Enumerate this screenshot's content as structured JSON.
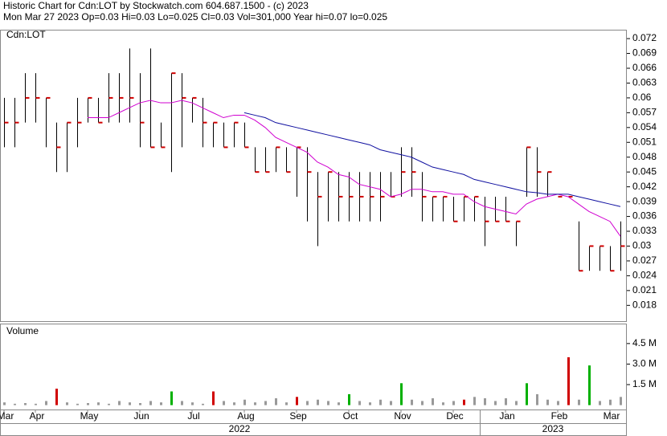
{
  "chart_data": [
    {
      "type": "ohlc",
      "title": "Historic Chart for Cdn:LOT by Stockwatch.com 604.687.1500 - (c) 2023",
      "subtitle": "Mon Mar 27 2023  Op=0.03  Hi=0.03  Lo=0.025  Cl=0.03  Vol=301,000  Year hi=0.07  lo=0.025",
      "label": "Cdn:LOT",
      "bar_color": "#000",
      "close_color": "#d00000",
      "high": [
        0.06,
        0.06,
        0.065,
        0.065,
        0.06,
        0.055,
        0.055,
        0.06,
        0.06,
        0.06,
        0.065,
        0.065,
        0.07,
        0.065,
        0.07,
        0.055,
        0.065,
        0.065,
        0.06,
        0.06,
        0.055,
        0.055,
        0.055,
        0.055,
        0.05,
        0.05,
        0.05,
        0.05,
        0.05,
        0.05,
        0.045,
        0.045,
        0.045,
        0.045,
        0.045,
        0.045,
        0.045,
        0.045,
        0.05,
        0.05,
        0.045,
        0.04,
        0.04,
        0.04,
        0.04,
        0.04,
        0.04,
        0.04,
        0.04,
        0.035,
        0.05,
        0.05,
        0.045,
        0.04,
        0.04,
        0.035,
        0.03,
        0.03,
        0.03,
        0.035
      ],
      "low": [
        0.05,
        0.05,
        0.055,
        0.055,
        0.05,
        0.045,
        0.045,
        0.05,
        0.055,
        0.055,
        0.055,
        0.055,
        0.055,
        0.05,
        0.05,
        0.05,
        0.045,
        0.05,
        0.055,
        0.05,
        0.05,
        0.05,
        0.05,
        0.05,
        0.045,
        0.045,
        0.045,
        0.045,
        0.04,
        0.035,
        0.03,
        0.035,
        0.035,
        0.035,
        0.035,
        0.035,
        0.035,
        0.04,
        0.04,
        0.04,
        0.035,
        0.035,
        0.035,
        0.035,
        0.035,
        0.035,
        0.03,
        0.035,
        0.035,
        0.03,
        0.04,
        0.04,
        0.04,
        0.04,
        0.04,
        0.025,
        0.025,
        0.025,
        0.025,
        0.025
      ],
      "close": [
        0.055,
        0.055,
        0.06,
        0.06,
        0.06,
        0.05,
        0.055,
        0.055,
        0.06,
        0.055,
        0.06,
        0.06,
        0.06,
        0.055,
        0.05,
        0.05,
        0.065,
        0.06,
        0.06,
        0.055,
        0.055,
        0.05,
        0.055,
        0.05,
        0.045,
        0.045,
        0.05,
        0.045,
        0.05,
        0.045,
        0.04,
        0.045,
        0.04,
        0.04,
        0.04,
        0.04,
        0.04,
        0.04,
        0.045,
        0.045,
        0.04,
        0.04,
        0.04,
        0.035,
        0.04,
        0.04,
        0.035,
        0.035,
        0.035,
        0.035,
        0.05,
        0.045,
        0.045,
        0.04,
        0.04,
        0.025,
        0.03,
        0.03,
        0.025,
        0.03
      ],
      "moving_averages": [
        {
          "color": "#d000d0",
          "values": [
            null,
            null,
            null,
            null,
            null,
            null,
            null,
            null,
            0.056,
            0.056,
            0.056,
            0.057,
            0.058,
            0.059,
            0.0595,
            0.059,
            0.059,
            0.0595,
            0.059,
            0.058,
            0.057,
            0.056,
            0.0565,
            0.0565,
            0.0555,
            0.054,
            0.052,
            0.051,
            0.05,
            0.049,
            0.047,
            0.046,
            0.0445,
            0.044,
            0.0425,
            0.042,
            0.0415,
            0.04,
            0.0405,
            0.0415,
            0.0415,
            0.041,
            0.041,
            0.0405,
            0.0405,
            0.039,
            0.038,
            0.0375,
            0.037,
            0.0365,
            0.0385,
            0.0395,
            0.04,
            0.0405,
            0.04,
            0.0385,
            0.037,
            0.036,
            0.035,
            0.032
          ]
        },
        {
          "color": "#1010a0",
          "values": [
            null,
            null,
            null,
            null,
            null,
            null,
            null,
            null,
            null,
            null,
            null,
            null,
            null,
            null,
            null,
            null,
            null,
            null,
            null,
            null,
            null,
            null,
            null,
            0.057,
            0.0565,
            0.056,
            0.055,
            0.0545,
            0.054,
            0.0535,
            0.053,
            0.0525,
            0.052,
            0.0515,
            0.051,
            0.0505,
            0.0495,
            0.049,
            0.0485,
            0.048,
            0.047,
            0.046,
            0.0455,
            0.045,
            0.0445,
            0.0435,
            0.043,
            0.0425,
            0.042,
            0.0415,
            0.041,
            0.0408,
            0.0405,
            0.0405,
            0.0405,
            0.04,
            0.0395,
            0.039,
            0.0385,
            0.038
          ]
        }
      ],
      "ylim": [
        0.0148,
        0.0738
      ],
      "yticks": [
        0.072,
        0.069,
        0.066,
        0.063,
        0.06,
        0.057,
        0.054,
        0.051,
        0.048,
        0.045,
        0.042,
        0.039,
        0.036,
        0.033,
        0.03,
        0.027,
        0.024,
        0.021,
        0.018
      ]
    },
    {
      "type": "bar",
      "title": "Volume",
      "categories": [
        "Mar",
        null,
        null,
        "Apr",
        null,
        null,
        null,
        null,
        "May",
        null,
        null,
        null,
        null,
        "Jun",
        null,
        null,
        null,
        null,
        "Jul",
        null,
        null,
        null,
        null,
        "Aug",
        null,
        null,
        null,
        null,
        "Sep",
        null,
        null,
        null,
        null,
        "Oct",
        null,
        null,
        null,
        null,
        "Nov",
        null,
        null,
        null,
        null,
        "Dec",
        null,
        null,
        null,
        null,
        "Jan",
        null,
        null,
        null,
        null,
        "Feb",
        null,
        null,
        null,
        null,
        "Mar",
        null
      ],
      "values": [
        0.2,
        0.1,
        0.15,
        0.1,
        0.3,
        1.2,
        0.2,
        0.1,
        0.15,
        0.2,
        0.1,
        0.3,
        0.2,
        0.15,
        0.3,
        0.2,
        1.0,
        0.3,
        0.2,
        0.1,
        1.0,
        0.3,
        0.2,
        0.4,
        0.2,
        0.3,
        0.5,
        0.2,
        0.6,
        0.3,
        0.4,
        0.3,
        0.2,
        0.8,
        0.3,
        0.2,
        0.4,
        0.3,
        1.6,
        0.4,
        0.3,
        0.5,
        0.2,
        0.3,
        0.4,
        0.6,
        0.5,
        0.3,
        0.5,
        0.3,
        1.6,
        0.8,
        0.4,
        0.3,
        3.5,
        0.4,
        2.9,
        0.3,
        0.4,
        0.6
      ],
      "colors": [
        "#999",
        "#999",
        "#999",
        "#999",
        "#999",
        "#d00000",
        "#999",
        "#999",
        "#999",
        "#999",
        "#999",
        "#999",
        "#999",
        "#999",
        "#999",
        "#999",
        "#00b000",
        "#999",
        "#999",
        "#999",
        "#d00000",
        "#999",
        "#999",
        "#999",
        "#999",
        "#999",
        "#999",
        "#999",
        "#d00000",
        "#999",
        "#999",
        "#999",
        "#999",
        "#00b000",
        "#999",
        "#999",
        "#999",
        "#999",
        "#00b000",
        "#999",
        "#999",
        "#999",
        "#999",
        "#999",
        "#d00000",
        "#999",
        "#999",
        "#999",
        "#999",
        "#999",
        "#00b000",
        "#999",
        "#999",
        "#999",
        "#d00000",
        "#999",
        "#00b000",
        "#999",
        "#999",
        "#999"
      ],
      "ylim": [
        -0.32,
        5.9
      ],
      "yticks": [
        {
          "value": 4.5,
          "label": "4.5 M"
        },
        {
          "value": 3.0,
          "label": "3.0 M"
        },
        {
          "value": 1.5,
          "label": "1.5 M"
        }
      ],
      "years": [
        "2022",
        "2023"
      ]
    }
  ]
}
